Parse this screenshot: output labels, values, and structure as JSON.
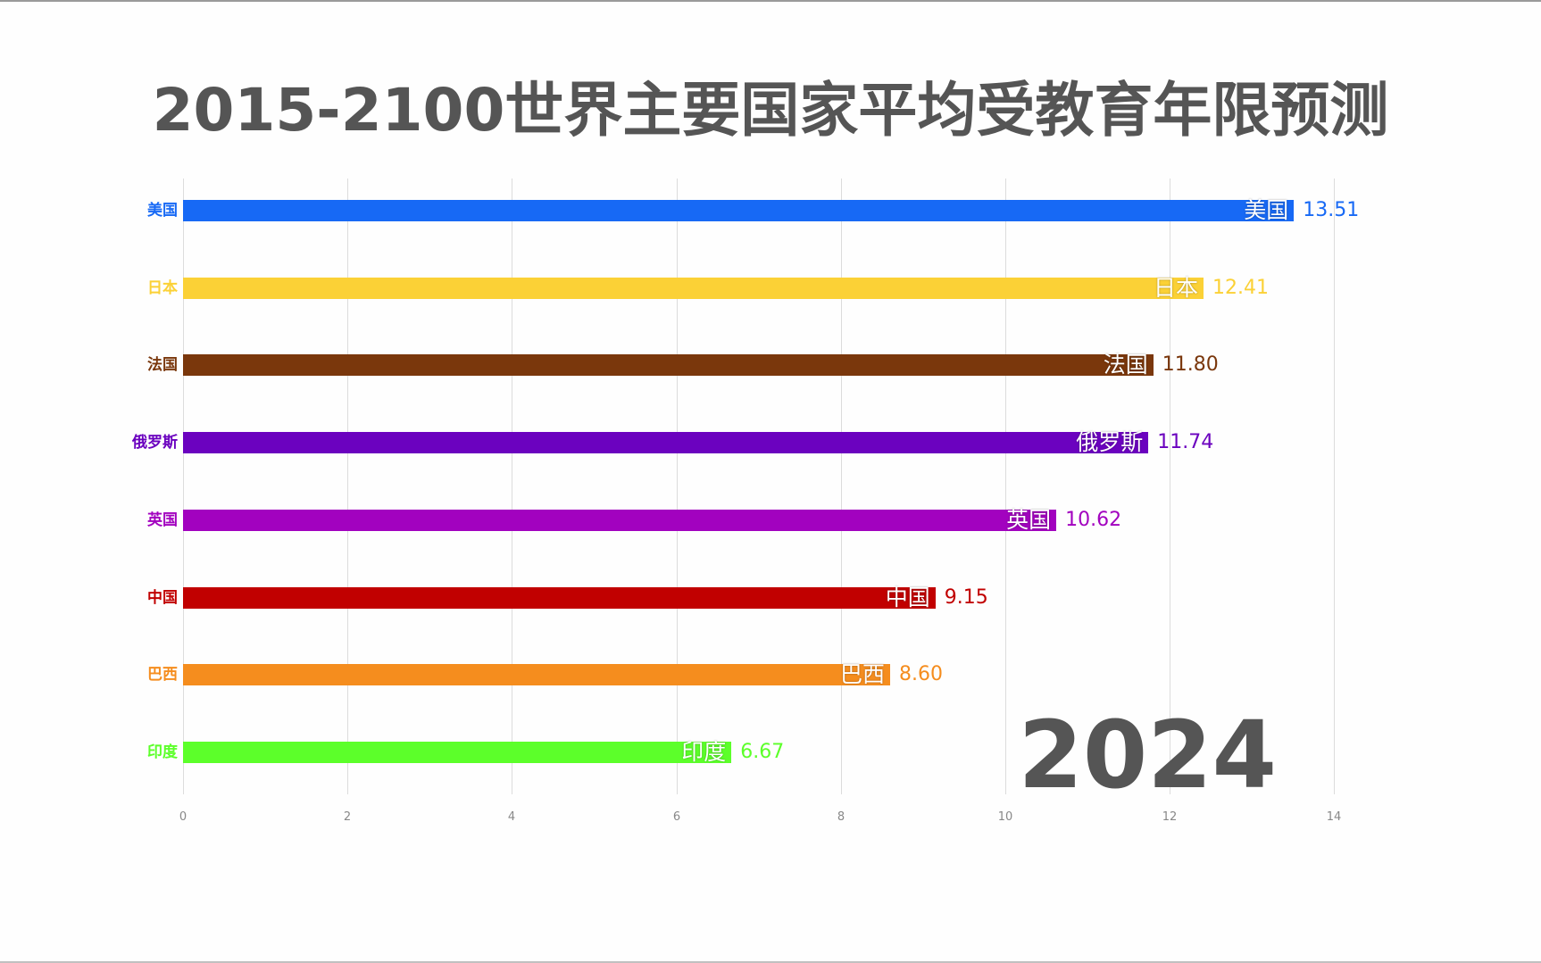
{
  "chart_data": {
    "type": "bar",
    "orientation": "horizontal",
    "title": "2015-2100世界主要国家平均受教育年限预测",
    "period_label": "2024",
    "categories": [
      "美国",
      "日本",
      "法国",
      "俄罗斯",
      "英国",
      "中国",
      "巴西",
      "印度"
    ],
    "values": [
      13.51,
      12.41,
      11.8,
      11.74,
      10.62,
      9.15,
      8.6,
      6.67
    ],
    "value_labels": [
      "13.51",
      "12.41",
      "11.80",
      "11.74",
      "10.62",
      "9.15",
      "8.60",
      "6.67"
    ],
    "colors": [
      "#1769f5",
      "#fbd136",
      "#7a370c",
      "#6b02bf",
      "#a202bf",
      "#c10000",
      "#f58d1e",
      "#5cff2a"
    ],
    "xlabel": "",
    "ylabel": "",
    "xlim": [
      0,
      14
    ],
    "xticks": [
      "0",
      "2",
      "4",
      "6",
      "8",
      "10",
      "12",
      "14"
    ],
    "grid": true,
    "legend": "none"
  }
}
